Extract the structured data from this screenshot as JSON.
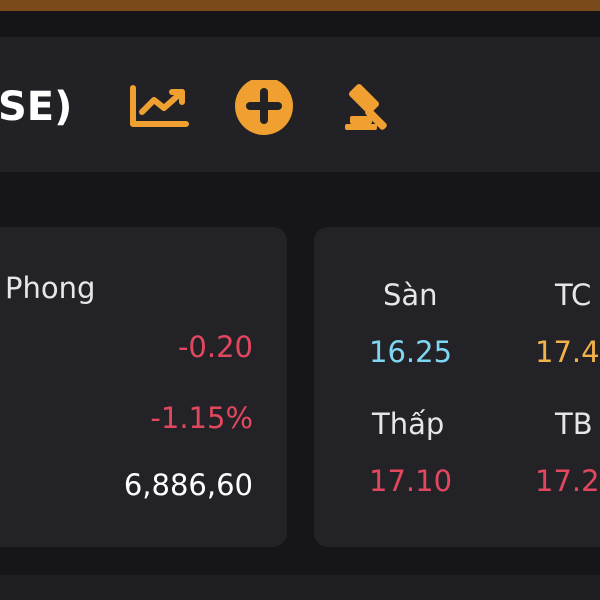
{
  "header": {
    "title": "SE)"
  },
  "left_card": {
    "label": "Phong",
    "change": "-0.20",
    "change_pct": "-1.15%",
    "volume": "6,886,60"
  },
  "right_card": {
    "cells": [
      {
        "label": "Sàn",
        "value": "16.25"
      },
      {
        "label": "TC",
        "value": "17.4"
      },
      {
        "label": "Thấp",
        "value": "17.10"
      },
      {
        "label": "TB",
        "value": "17.2"
      }
    ]
  }
}
